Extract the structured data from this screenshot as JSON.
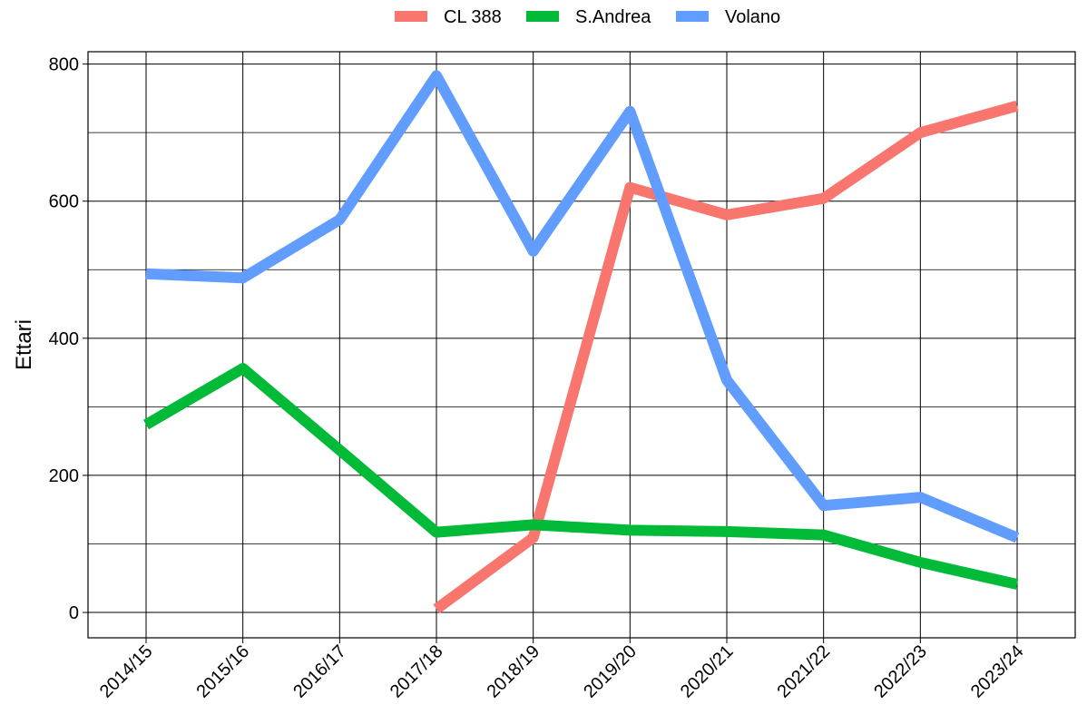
{
  "chart_data": {
    "type": "line",
    "y_label": "Ettari",
    "categories": [
      "2014/15",
      "2015/16",
      "2016/17",
      "2017/18",
      "2018/19",
      "2019/20",
      "2020/21",
      "2021/22",
      "2022/23",
      "2023/24"
    ],
    "series": [
      {
        "name": "CL 388",
        "color": "#f8766d",
        "values": [
          null,
          null,
          null,
          5,
          109,
          620,
          580,
          604,
          700,
          739
        ]
      },
      {
        "name": "S.Andrea",
        "color": "#00ba38",
        "values": [
          274,
          356,
          237,
          117,
          128,
          120,
          118,
          113,
          73,
          41
        ]
      },
      {
        "name": "Volano",
        "color": "#619cff",
        "values": [
          494,
          488,
          573,
          783,
          527,
          731,
          339,
          156,
          168,
          109
        ]
      }
    ],
    "ylim": [
      -37,
      818
    ],
    "yticks": [
      0,
      200,
      400,
      600,
      800
    ],
    "yticks_minor": [
      100,
      300,
      500,
      700
    ],
    "grid": true,
    "legend": "top"
  }
}
